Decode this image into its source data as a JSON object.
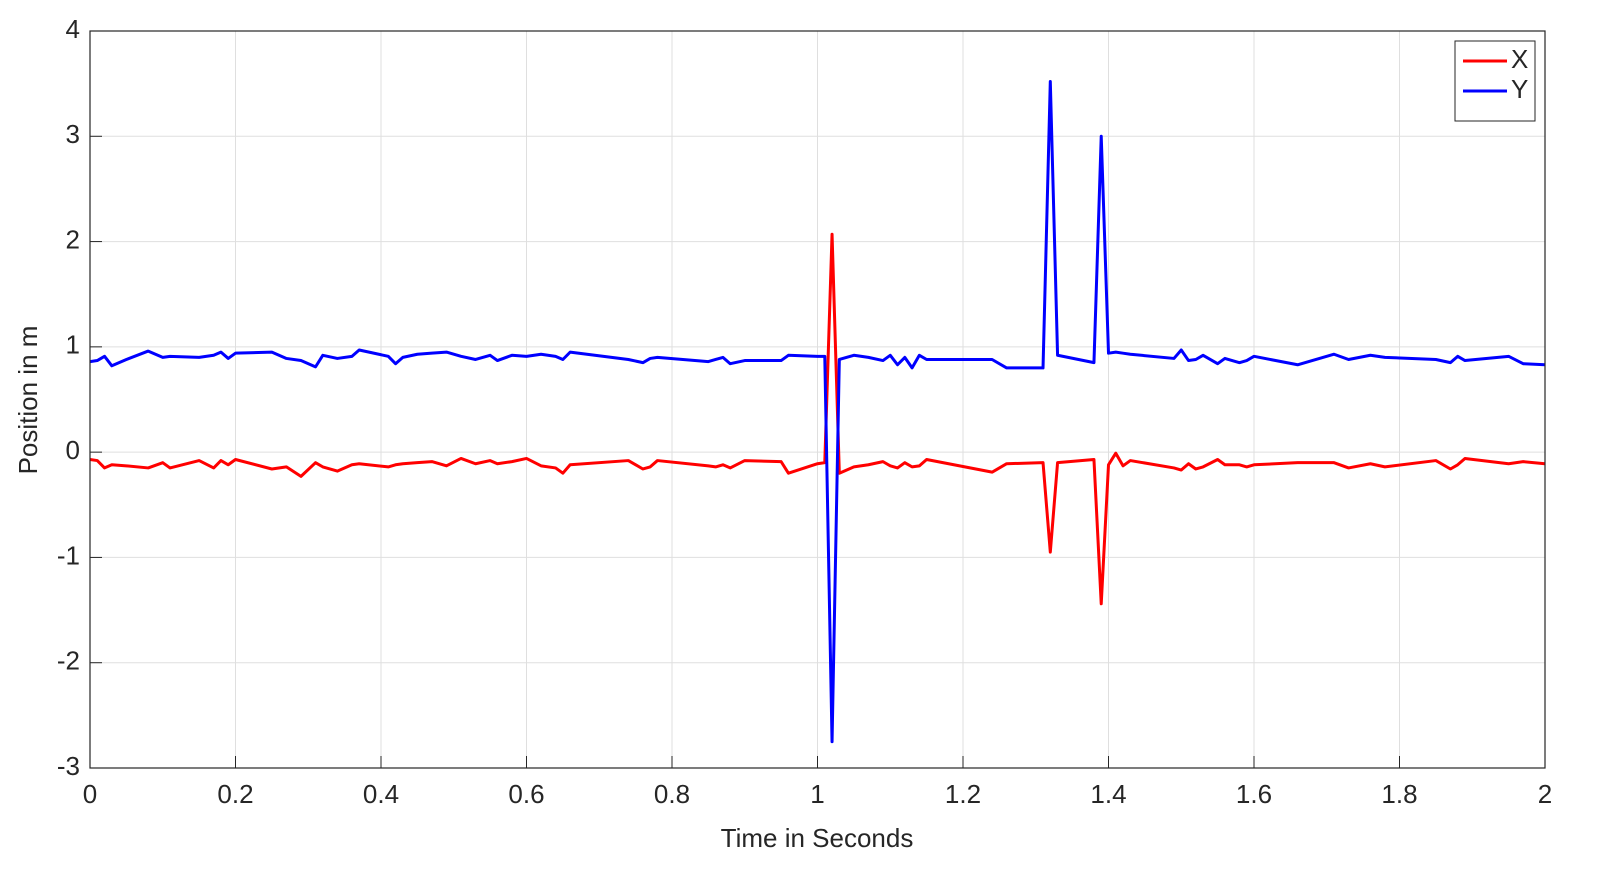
{
  "chart_data": {
    "type": "line",
    "xlabel": "Time in Seconds",
    "ylabel": "Position in m",
    "x": [
      0,
      0.01,
      0.02,
      0.03,
      0.05,
      0.08,
      0.1,
      0.11,
      0.15,
      0.17,
      0.18,
      0.19,
      0.2,
      0.25,
      0.27,
      0.29,
      0.31,
      0.32,
      0.34,
      0.36,
      0.37,
      0.41,
      0.42,
      0.43,
      0.45,
      0.47,
      0.49,
      0.51,
      0.53,
      0.55,
      0.56,
      0.58,
      0.6,
      0.62,
      0.64,
      0.65,
      0.66,
      0.74,
      0.76,
      0.77,
      0.78,
      0.85,
      0.86,
      0.87,
      0.88,
      0.9,
      0.95,
      0.96,
      1.0,
      1.01,
      1.02,
      1.03,
      1.05,
      1.07,
      1.09,
      1.1,
      1.11,
      1.12,
      1.13,
      1.14,
      1.15,
      1.24,
      1.26,
      1.31,
      1.32,
      1.33,
      1.38,
      1.39,
      1.4,
      1.41,
      1.42,
      1.43,
      1.49,
      1.5,
      1.51,
      1.52,
      1.53,
      1.55,
      1.56,
      1.58,
      1.59,
      1.6,
      1.66,
      1.71,
      1.73,
      1.76,
      1.78,
      1.85,
      1.87,
      1.88,
      1.89,
      1.95,
      1.97,
      2.0
    ],
    "series": [
      {
        "name": "X",
        "color": "#ff0000",
        "values": [
          -0.07,
          -0.08,
          -0.15,
          -0.12,
          -0.13,
          -0.15,
          -0.1,
          -0.15,
          -0.08,
          -0.15,
          -0.08,
          -0.12,
          -0.07,
          -0.16,
          -0.14,
          -0.23,
          -0.1,
          -0.14,
          -0.18,
          -0.12,
          -0.11,
          -0.14,
          -0.12,
          -0.11,
          -0.1,
          -0.09,
          -0.13,
          -0.06,
          -0.11,
          -0.08,
          -0.11,
          -0.09,
          -0.06,
          -0.13,
          -0.15,
          -0.2,
          -0.12,
          -0.08,
          -0.16,
          -0.14,
          -0.08,
          -0.13,
          -0.14,
          -0.12,
          -0.15,
          -0.08,
          -0.09,
          -0.2,
          -0.11,
          -0.1,
          2.07,
          -0.2,
          -0.14,
          -0.12,
          -0.09,
          -0.13,
          -0.15,
          -0.1,
          -0.14,
          -0.13,
          -0.07,
          -0.19,
          -0.11,
          -0.1,
          -0.95,
          -0.1,
          -0.07,
          -1.44,
          -0.12,
          -0.01,
          -0.13,
          -0.08,
          -0.15,
          -0.17,
          -0.11,
          -0.16,
          -0.14,
          -0.07,
          -0.12,
          -0.12,
          -0.14,
          -0.12,
          -0.1,
          -0.1,
          -0.15,
          -0.11,
          -0.14,
          -0.08,
          -0.16,
          -0.12,
          -0.06,
          -0.11,
          -0.09,
          -0.11
        ]
      },
      {
        "name": "Y",
        "color": "#0000ff",
        "values": [
          0.86,
          0.87,
          0.91,
          0.82,
          0.88,
          0.96,
          0.9,
          0.91,
          0.9,
          0.92,
          0.95,
          0.89,
          0.94,
          0.95,
          0.89,
          0.87,
          0.81,
          0.92,
          0.89,
          0.91,
          0.97,
          0.91,
          0.84,
          0.9,
          0.93,
          0.94,
          0.95,
          0.91,
          0.88,
          0.92,
          0.87,
          0.92,
          0.91,
          0.93,
          0.91,
          0.88,
          0.95,
          0.88,
          0.85,
          0.89,
          0.9,
          0.86,
          0.88,
          0.9,
          0.84,
          0.87,
          0.87,
          0.92,
          0.91,
          0.91,
          -2.75,
          0.88,
          0.92,
          0.9,
          0.87,
          0.92,
          0.83,
          0.9,
          0.8,
          0.92,
          0.88,
          0.88,
          0.8,
          0.8,
          3.52,
          0.92,
          0.85,
          3.0,
          0.94,
          0.95,
          0.94,
          0.93,
          0.89,
          0.97,
          0.87,
          0.88,
          0.92,
          0.84,
          0.89,
          0.85,
          0.87,
          0.91,
          0.83,
          0.93,
          0.88,
          0.92,
          0.9,
          0.88,
          0.85,
          0.91,
          0.87,
          0.91,
          0.84,
          0.83
        ]
      }
    ],
    "xlim": [
      0,
      2
    ],
    "xticks": [
      0,
      0.2,
      0.4,
      0.6,
      0.8,
      1,
      1.2,
      1.4,
      1.6,
      1.8,
      2
    ],
    "ylim": [
      -3,
      4
    ],
    "yticks": [
      -3,
      -2,
      -1,
      0,
      1,
      2,
      3,
      4
    ],
    "grid": true,
    "legend": "northeast"
  }
}
